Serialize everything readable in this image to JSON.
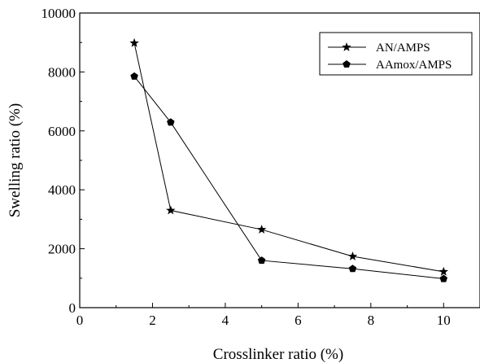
{
  "chart_data": {
    "type": "line",
    "xlabel": "Crosslinker ratio (%)",
    "ylabel": "Swelling ratio (%)",
    "xlim": [
      0,
      11
    ],
    "ylim": [
      0,
      10000
    ],
    "x_ticks": [
      0,
      2,
      4,
      6,
      8,
      10
    ],
    "y_ticks": [
      0,
      2000,
      4000,
      6000,
      8000,
      10000
    ],
    "x_tick_labels": [
      "0",
      "2",
      "4",
      "6",
      "8",
      "10"
    ],
    "y_tick_labels": [
      "0",
      "2000",
      "4000",
      "6000",
      "8000",
      "10000"
    ],
    "grid": false,
    "legend_position": "top-right",
    "series": [
      {
        "name": "AN/AMPS",
        "marker": "star",
        "color": "#000000",
        "x": [
          1.5,
          2.5,
          5,
          7.5,
          10
        ],
        "y": [
          8980,
          3300,
          2650,
          1740,
          1220
        ]
      },
      {
        "name": "AAmox/AMPS",
        "marker": "pentagon",
        "color": "#000000",
        "x": [
          1.5,
          2.5,
          5,
          7.5,
          10
        ],
        "y": [
          7850,
          6290,
          1600,
          1320,
          980
        ]
      }
    ]
  }
}
